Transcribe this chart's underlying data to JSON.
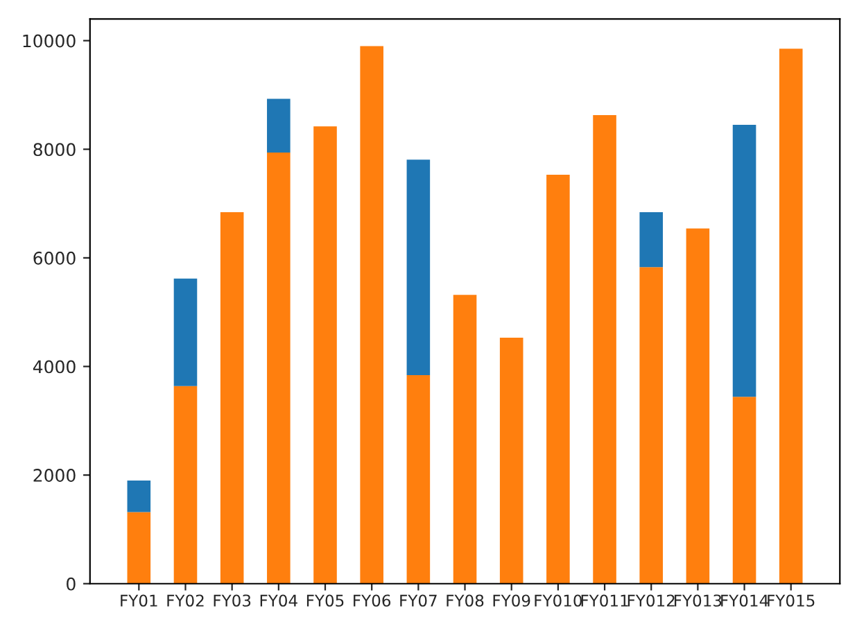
{
  "chart_data": {
    "type": "bar",
    "stacked": true,
    "categories": [
      "FY01",
      "FY02",
      "FY03",
      "FY04",
      "FY05",
      "FY06",
      "FY07",
      "FY08",
      "FY09",
      "FY010",
      "FY011",
      "FY012",
      "FY013",
      "FY014",
      "FY015"
    ],
    "series": [
      {
        "color": "#ff7f0e",
        "values": [
          1320,
          3640,
          6840,
          7940,
          8420,
          9900,
          3840,
          5320,
          4530,
          7530,
          8630,
          5830,
          6540,
          3440,
          9850
        ]
      },
      {
        "color": "#1f77b4",
        "values": [
          580,
          1980,
          null,
          990,
          null,
          null,
          3970,
          null,
          null,
          null,
          null,
          1010,
          null,
          5010,
          null
        ]
      }
    ],
    "ylim": [
      0,
      10400
    ],
    "yticks": [
      0,
      2000,
      4000,
      6000,
      8000,
      10000
    ],
    "grid": false,
    "legend": false
  }
}
